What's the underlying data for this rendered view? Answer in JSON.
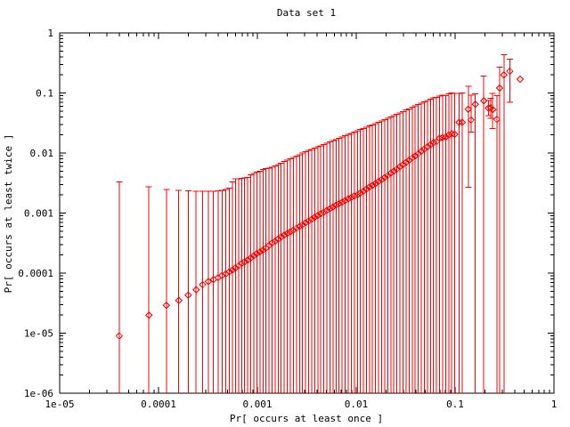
{
  "figure": {
    "title": "Data set 1",
    "xlabel": "Pr[ occurs at least once ]",
    "ylabel": "Pr[ occurs at least twice ]"
  },
  "colors": {
    "series": "#ff0000",
    "axis": "#000000",
    "background": "#ffffff",
    "text": "#000000"
  },
  "chart_data": {
    "type": "scatter",
    "marker": "open-diamond-with-center-dot",
    "error_bars": "y",
    "x_scale": "log",
    "y_scale": "log",
    "xlim": [
      1e-05,
      1
    ],
    "ylim": [
      1e-06,
      1
    ],
    "x_tick_labels": [
      "1e-05",
      "0.0001",
      "0.001",
      "0.01",
      "0.1",
      "1"
    ],
    "y_tick_labels": [
      "1e-06",
      "1e-05",
      "0.0001",
      "0.001",
      "0.01",
      "0.1",
      "1"
    ],
    "grid": false,
    "legend": null,
    "points_format": [
      "x",
      "y",
      "y_low (null = bar clipped below y-axis minimum)",
      "y_high (null = no error bar)"
    ],
    "points": [
      [
        4e-05,
        9e-06,
        null,
        0.0033
      ],
      [
        8e-05,
        2e-05,
        null,
        0.00275
      ],
      [
        0.00012,
        2.9e-05,
        null,
        0.00245
      ],
      [
        0.00016,
        3.5e-05,
        null,
        0.0024
      ],
      [
        0.0002,
        4.3e-05,
        null,
        0.00235
      ],
      [
        0.00024,
        5.3e-05,
        null,
        0.0023
      ],
      [
        0.00028,
        6.4e-05,
        null,
        0.0023
      ],
      [
        0.00032,
        7.2e-05,
        null,
        0.0023
      ],
      [
        0.00036,
        7.8e-05,
        null,
        0.0023
      ],
      [
        0.0004,
        8.4e-05,
        null,
        0.00235
      ],
      [
        0.00044,
        9.1e-05,
        null,
        0.0024
      ],
      [
        0.00048,
        9.7e-05,
        null,
        0.00245
      ],
      [
        0.00052,
        0.000105,
        null,
        0.0026
      ],
      [
        0.00056,
        0.000113,
        null,
        0.0033
      ],
      [
        0.0006,
        0.000122,
        null,
        0.0037
      ],
      [
        0.000645,
        0.000132,
        null,
        0.00375
      ],
      [
        0.000693,
        0.000145,
        null,
        0.0038
      ],
      [
        0.000744,
        0.000155,
        null,
        0.00385
      ],
      [
        0.000798,
        0.000165,
        null,
        0.0039
      ],
      [
        0.000857,
        0.00018,
        null,
        0.0043
      ],
      [
        0.00092,
        0.000195,
        null,
        0.0046
      ],
      [
        0.000988,
        0.00021,
        null,
        0.0048
      ],
      [
        0.00106,
        0.000225,
        null,
        0.005
      ],
      [
        0.00114,
        0.00024,
        null,
        0.0053
      ],
      [
        0.00122,
        0.00026,
        null,
        0.0055
      ],
      [
        0.00131,
        0.00029,
        null,
        0.0056
      ],
      [
        0.00141,
        0.00032,
        null,
        0.0058
      ],
      [
        0.00151,
        0.00034,
        null,
        0.0061
      ],
      [
        0.00162,
        0.00037,
        null,
        0.0064
      ],
      [
        0.00174,
        0.0004,
        null,
        0.0068
      ],
      [
        0.00187,
        0.00043,
        null,
        0.0072
      ],
      [
        0.00201,
        0.00046,
        null,
        0.0076
      ],
      [
        0.00216,
        0.00049,
        null,
        0.008
      ],
      [
        0.00231,
        0.00052,
        null,
        0.0084
      ],
      [
        0.00248,
        0.00056,
        null,
        0.0089
      ],
      [
        0.00267,
        0.0006,
        null,
        0.0094
      ],
      [
        0.00286,
        0.00064,
        null,
        0.01
      ],
      [
        0.00307,
        0.00069,
        null,
        0.0105
      ],
      [
        0.0033,
        0.00074,
        null,
        0.011
      ],
      [
        0.00354,
        0.00079,
        null,
        0.0115
      ],
      [
        0.0038,
        0.00085,
        null,
        0.012
      ],
      [
        0.00408,
        0.00091,
        null,
        0.0126
      ],
      [
        0.00438,
        0.00097,
        null,
        0.0132
      ],
      [
        0.0047,
        0.00104,
        null,
        0.0139
      ],
      [
        0.00505,
        0.00111,
        null,
        0.0146
      ],
      [
        0.00542,
        0.00118,
        null,
        0.0153
      ],
      [
        0.00582,
        0.00126,
        null,
        0.016
      ],
      [
        0.00624,
        0.00134,
        null,
        0.0168
      ],
      [
        0.0067,
        0.00143,
        null,
        0.0176
      ],
      [
        0.00719,
        0.00152,
        null,
        0.0185
      ],
      [
        0.00772,
        0.00162,
        null,
        0.0194
      ],
      [
        0.00829,
        0.00172,
        null,
        0.0203
      ],
      [
        0.0089,
        0.00182,
        null,
        0.0213
      ],
      [
        0.00955,
        0.00192,
        null,
        0.0223
      ],
      [
        0.0103,
        0.002,
        null,
        0.0234
      ],
      [
        0.011,
        0.00215,
        null,
        0.0245
      ],
      [
        0.0118,
        0.0023,
        null,
        0.0256
      ],
      [
        0.0127,
        0.0025,
        null,
        0.0268
      ],
      [
        0.0136,
        0.0027,
        null,
        0.0281
      ],
      [
        0.0146,
        0.0029,
        null,
        0.0295
      ],
      [
        0.0157,
        0.0031,
        null,
        0.031
      ],
      [
        0.0168,
        0.00335,
        null,
        0.0325
      ],
      [
        0.0181,
        0.0036,
        null,
        0.034
      ],
      [
        0.0194,
        0.0039,
        null,
        0.036
      ],
      [
        0.0208,
        0.0042,
        null,
        0.038
      ],
      [
        0.0224,
        0.0046,
        null,
        0.04
      ],
      [
        0.024,
        0.005,
        null,
        0.042
      ],
      [
        0.0258,
        0.0054,
        null,
        0.044
      ],
      [
        0.0277,
        0.0059,
        null,
        0.0465
      ],
      [
        0.0297,
        0.0064,
        null,
        0.049
      ],
      [
        0.0319,
        0.007,
        null,
        0.052
      ],
      [
        0.0342,
        0.0076,
        null,
        0.0545
      ],
      [
        0.0368,
        0.0083,
        null,
        0.0575
      ],
      [
        0.0395,
        0.009,
        null,
        0.0605
      ],
      [
        0.0424,
        0.0098,
        null,
        0.064
      ],
      [
        0.0455,
        0.0107,
        null,
        0.067
      ],
      [
        0.0488,
        0.0116,
        null,
        0.071
      ],
      [
        0.0524,
        0.0127,
        null,
        0.075
      ],
      [
        0.0563,
        0.0138,
        null,
        0.079
      ],
      [
        0.0604,
        0.015,
        null,
        0.083
      ],
      [
        0.0648,
        0.0155,
        null,
        0.084
      ],
      [
        0.0696,
        0.0175,
        null,
        0.088
      ],
      [
        0.0747,
        0.018,
        null,
        0.092
      ],
      [
        0.0802,
        0.0185,
        null,
        0.09
      ],
      [
        0.0861,
        0.02,
        null,
        0.096
      ],
      [
        0.0924,
        0.021,
        null,
        0.1
      ],
      [
        0.0992,
        0.0205,
        null,
        0.098
      ],
      [
        0.11,
        0.0325,
        null,
        0.098
      ],
      [
        0.118,
        0.0325,
        null,
        0.1
      ],
      [
        0.136,
        0.0537,
        0.0027,
        0.13
      ],
      [
        0.145,
        0.0355,
        0.0224,
        0.0925
      ],
      [
        0.16,
        0.0646,
        null,
        0.096
      ],
      [
        0.195,
        0.074,
        null,
        0.19
      ],
      [
        0.218,
        0.056,
        0.042,
        0.075
      ],
      [
        0.229,
        0.057,
        0.038,
        0.082
      ],
      [
        0.24,
        0.0527,
        0.0257,
        0.098
      ],
      [
        0.264,
        0.0365,
        null,
        0.09
      ],
      [
        0.282,
        0.121,
        null,
        0.27
      ],
      [
        0.312,
        0.2,
        null,
        0.43
      ],
      [
        0.357,
        0.23,
        0.07,
        0.363
      ],
      [
        0.454,
        0.17,
        null,
        null
      ]
    ]
  }
}
